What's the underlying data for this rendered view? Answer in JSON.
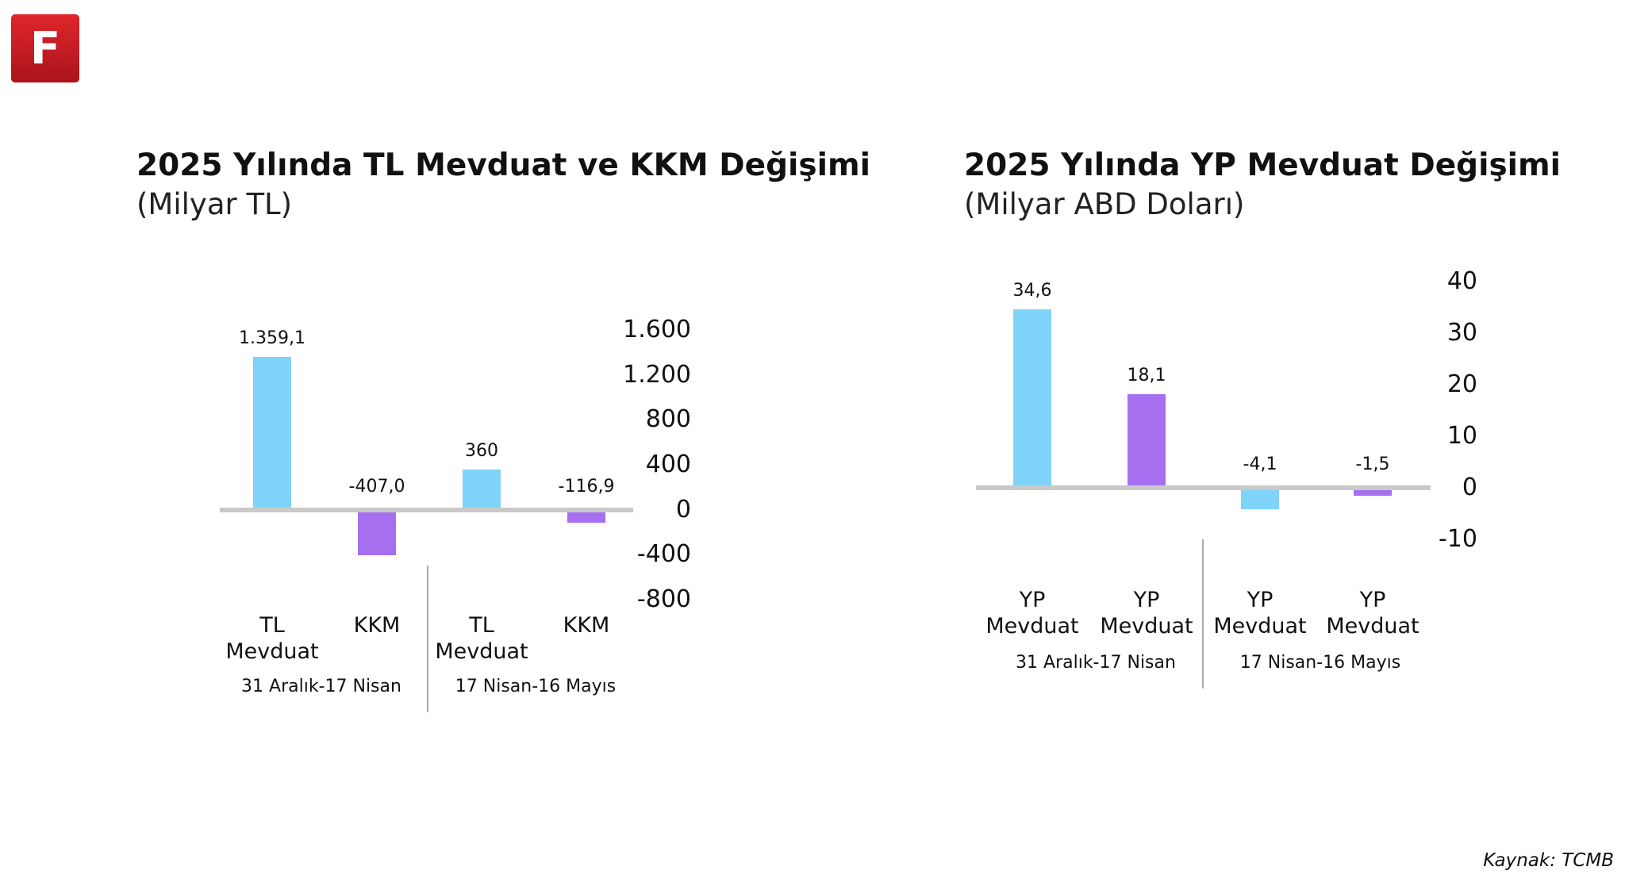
{
  "logo": "F",
  "source": "Kaynak: TCMB",
  "chart_data": [
    {
      "type": "bar",
      "title": "2025 Yılında TL Mevduat ve KKM Değişimi",
      "subtitle": "(Milyar TL)",
      "categories": [
        "TL Mevduat",
        "KKM",
        "TL Mevduat",
        "KKM"
      ],
      "groups": [
        "31 Aralık-17 Nisan",
        "17 Nisan-16 Mayıs"
      ],
      "values": [
        1359.1,
        -407.0,
        360,
        -116.9
      ],
      "value_labels": [
        "1.359,1",
        "-407,0",
        "360",
        "-116,9"
      ],
      "colors": [
        "#7fd3f8",
        "#a66ff0",
        "#7fd3f8",
        "#a66ff0"
      ],
      "ylim": [
        -800,
        1600
      ],
      "yticks": [
        -800,
        -400,
        0,
        400,
        800,
        {
          "value": 1200,
          "label": "1.200"
        },
        {
          "value": 1600,
          "label": "1.600"
        }
      ]
    },
    {
      "type": "bar",
      "title": "2025 Yılında YP Mevduat Değişimi",
      "subtitle": "(Milyar ABD Doları)",
      "categories": [
        "YP Mevduat",
        "YP Mevduat",
        "YP Mevduat",
        "YP Mevduat"
      ],
      "groups": [
        "31 Aralık-17 Nisan",
        "17 Nisan-16 Mayıs"
      ],
      "values": [
        34.6,
        18.1,
        -4.1,
        -1.5
      ],
      "value_labels": [
        "34,6",
        "18,1",
        "-4,1",
        "-1,5"
      ],
      "colors": [
        "#7fd3f8",
        "#a66ff0",
        "#7fd3f8",
        "#a66ff0"
      ],
      "ylim": [
        -10,
        40
      ],
      "yticks": [
        -10,
        0,
        10,
        20,
        30,
        40
      ]
    }
  ]
}
